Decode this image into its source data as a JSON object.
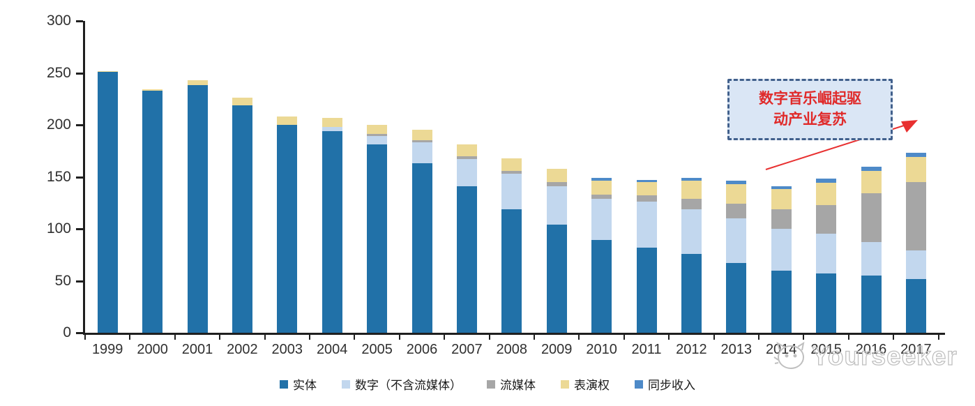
{
  "chart_data": {
    "type": "bar",
    "stacked": true,
    "title": "",
    "xlabel": "",
    "ylabel": "",
    "ylim": [
      0,
      300
    ],
    "yticks": [
      0,
      50,
      100,
      150,
      200,
      250,
      300
    ],
    "grid": false,
    "legend_position": "bottom",
    "categories": [
      "1999",
      "2000",
      "2001",
      "2002",
      "2003",
      "2004",
      "2005",
      "2006",
      "2007",
      "2008",
      "2009",
      "2010",
      "2011",
      "2012",
      "2013",
      "2014",
      "2015",
      "2016",
      "2017"
    ],
    "series": [
      {
        "name": "实体",
        "color": "#2171A8",
        "values": [
          251,
          233,
          238,
          219,
          200,
          194,
          181,
          163,
          141,
          119,
          104,
          89,
          82,
          76,
          67,
          60,
          57,
          55,
          52
        ]
      },
      {
        "name": "数字（不含流媒体）",
        "color": "#C2D7EE",
        "values": [
          0,
          0,
          0,
          0,
          0,
          4,
          8,
          20,
          26,
          34,
          37,
          40,
          44,
          43,
          43,
          40,
          38,
          32,
          27
        ]
      },
      {
        "name": "流媒体",
        "color": "#A6A6A6",
        "values": [
          0,
          0,
          0,
          0,
          0,
          0,
          2,
          2,
          3,
          3,
          4,
          4,
          6,
          10,
          14,
          19,
          28,
          47,
          66
        ]
      },
      {
        "name": "表演权",
        "color": "#ECD995",
        "values": [
          1,
          1,
          5,
          7,
          8,
          9,
          9,
          10,
          11,
          12,
          13,
          13,
          13,
          17,
          19,
          19,
          21,
          22,
          24
        ]
      },
      {
        "name": "同步收入",
        "color": "#4E8AC8",
        "values": [
          0,
          0,
          0,
          0,
          0,
          0,
          0,
          0,
          0,
          0,
          0,
          3,
          2,
          3,
          3,
          3,
          4,
          4,
          4
        ]
      }
    ]
  },
  "annotation": {
    "lines": [
      "数字音乐崛起驱",
      "动产业复苏"
    ],
    "text_color": "#E02A2A",
    "box_fill": "#DAE6F5",
    "box_border": "#41608C",
    "arrow_color": "#E83030"
  },
  "watermark": {
    "text": "Yourseeker",
    "icon": "cat-logo",
    "color": "#BFBFBF"
  },
  "axis": {
    "color": "#1F1F1F"
  }
}
